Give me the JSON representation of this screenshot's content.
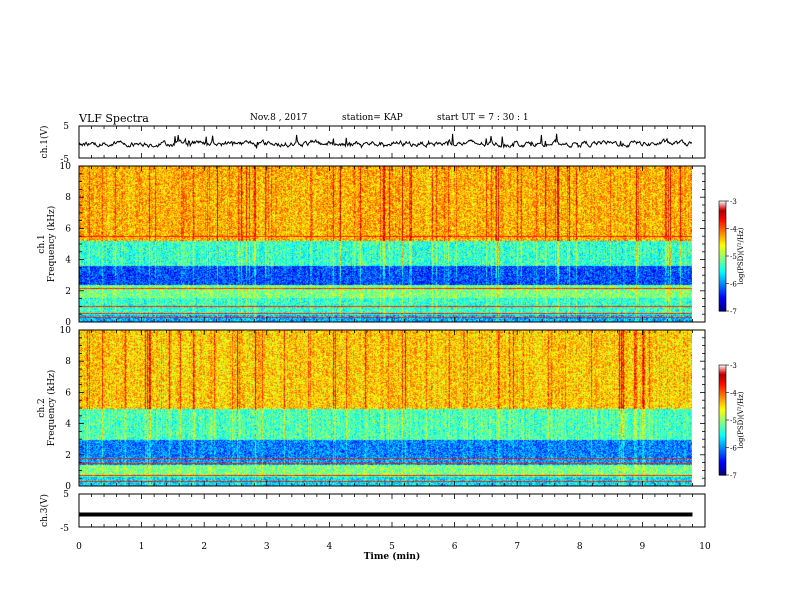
{
  "header": {
    "title": "VLF Spectra",
    "date": "Nov.8  , 2017",
    "station": "station= KAP",
    "start": "start  UT  =   7 : 30 : 1"
  },
  "chart_data": [
    {
      "type": "line",
      "panel": "ch.1 waveform",
      "ylabel": "ch.1(V)",
      "ylim": [
        -5,
        5
      ],
      "yticks": [
        "5",
        "-5"
      ],
      "xlim": [
        0,
        10
      ],
      "series_note_values": "noisy trace around -0.5 V, amplitude about ±2 V, x range 0 to 9.8 min"
    },
    {
      "type": "heatmap",
      "panel": "ch.1 spectrogram",
      "ylabel": "ch.1\nFrequency  (kHz)",
      "ylim": [
        0,
        10
      ],
      "yticks": [
        "0",
        "2",
        "4",
        "6",
        "8",
        "10"
      ],
      "xlim": [
        0,
        10
      ],
      "data_extent_min": 9.8,
      "bands_khz": [
        {
          "from": 0,
          "to": 0.5,
          "level": -5.8
        },
        {
          "from": 0.5,
          "to": 1.6,
          "level": -5.3
        },
        {
          "from": 1.6,
          "to": 2.4,
          "level": -5.0
        },
        {
          "from": 2.4,
          "to": 3.6,
          "level": -6.2
        },
        {
          "from": 3.6,
          "to": 5.2,
          "level": -5.3
        },
        {
          "from": 5.2,
          "to": 10,
          "level": -4.2
        }
      ],
      "lines_khz": [
        0.3,
        0.6,
        1.0,
        2.2,
        5.5
      ],
      "colorbar": {
        "label": "log(PSD)(V²/Hz)",
        "min": -7,
        "max": -3,
        "ticks": [
          "-3",
          "-4",
          "-5",
          "-6",
          "-7"
        ]
      }
    },
    {
      "type": "heatmap",
      "panel": "ch.2 spectrogram",
      "ylabel": "ch.2\nFrequency  (kHz)",
      "ylim": [
        0,
        10
      ],
      "yticks": [
        "0",
        "2",
        "4",
        "6",
        "8",
        "10"
      ],
      "xlim": [
        0,
        10
      ],
      "data_extent_min": 9.8,
      "bands_khz": [
        {
          "from": 0,
          "to": 0.6,
          "level": -5.6
        },
        {
          "from": 0.6,
          "to": 1.4,
          "level": -5.0
        },
        {
          "from": 1.4,
          "to": 1.9,
          "level": -5.9
        },
        {
          "from": 1.9,
          "to": 3.0,
          "level": -6.0
        },
        {
          "from": 3.0,
          "to": 5.0,
          "level": -5.2
        },
        {
          "from": 5.0,
          "to": 10,
          "level": -4.3
        }
      ],
      "lines_khz": [
        0.3,
        0.7,
        1.5,
        1.8
      ],
      "colorbar": {
        "label": "log(PSD)(V²/Hz)",
        "min": -7,
        "max": -3,
        "ticks": [
          "-3",
          "-4",
          "-5",
          "-6",
          "-7"
        ]
      }
    },
    {
      "type": "line",
      "panel": "ch.3 waveform",
      "ylabel": "ch.3(V)",
      "ylim": [
        -5,
        5
      ],
      "yticks": [
        "5",
        "-5"
      ],
      "xlim": [
        0,
        10
      ],
      "constant_value": -1.2,
      "xlabel": "Time  (min)",
      "xticks": [
        "0",
        "1",
        "2",
        "3",
        "4",
        "5",
        "6",
        "7",
        "8",
        "9",
        "10"
      ]
    }
  ],
  "colors": {
    "axis": "#000000",
    "trace": "#000000"
  }
}
